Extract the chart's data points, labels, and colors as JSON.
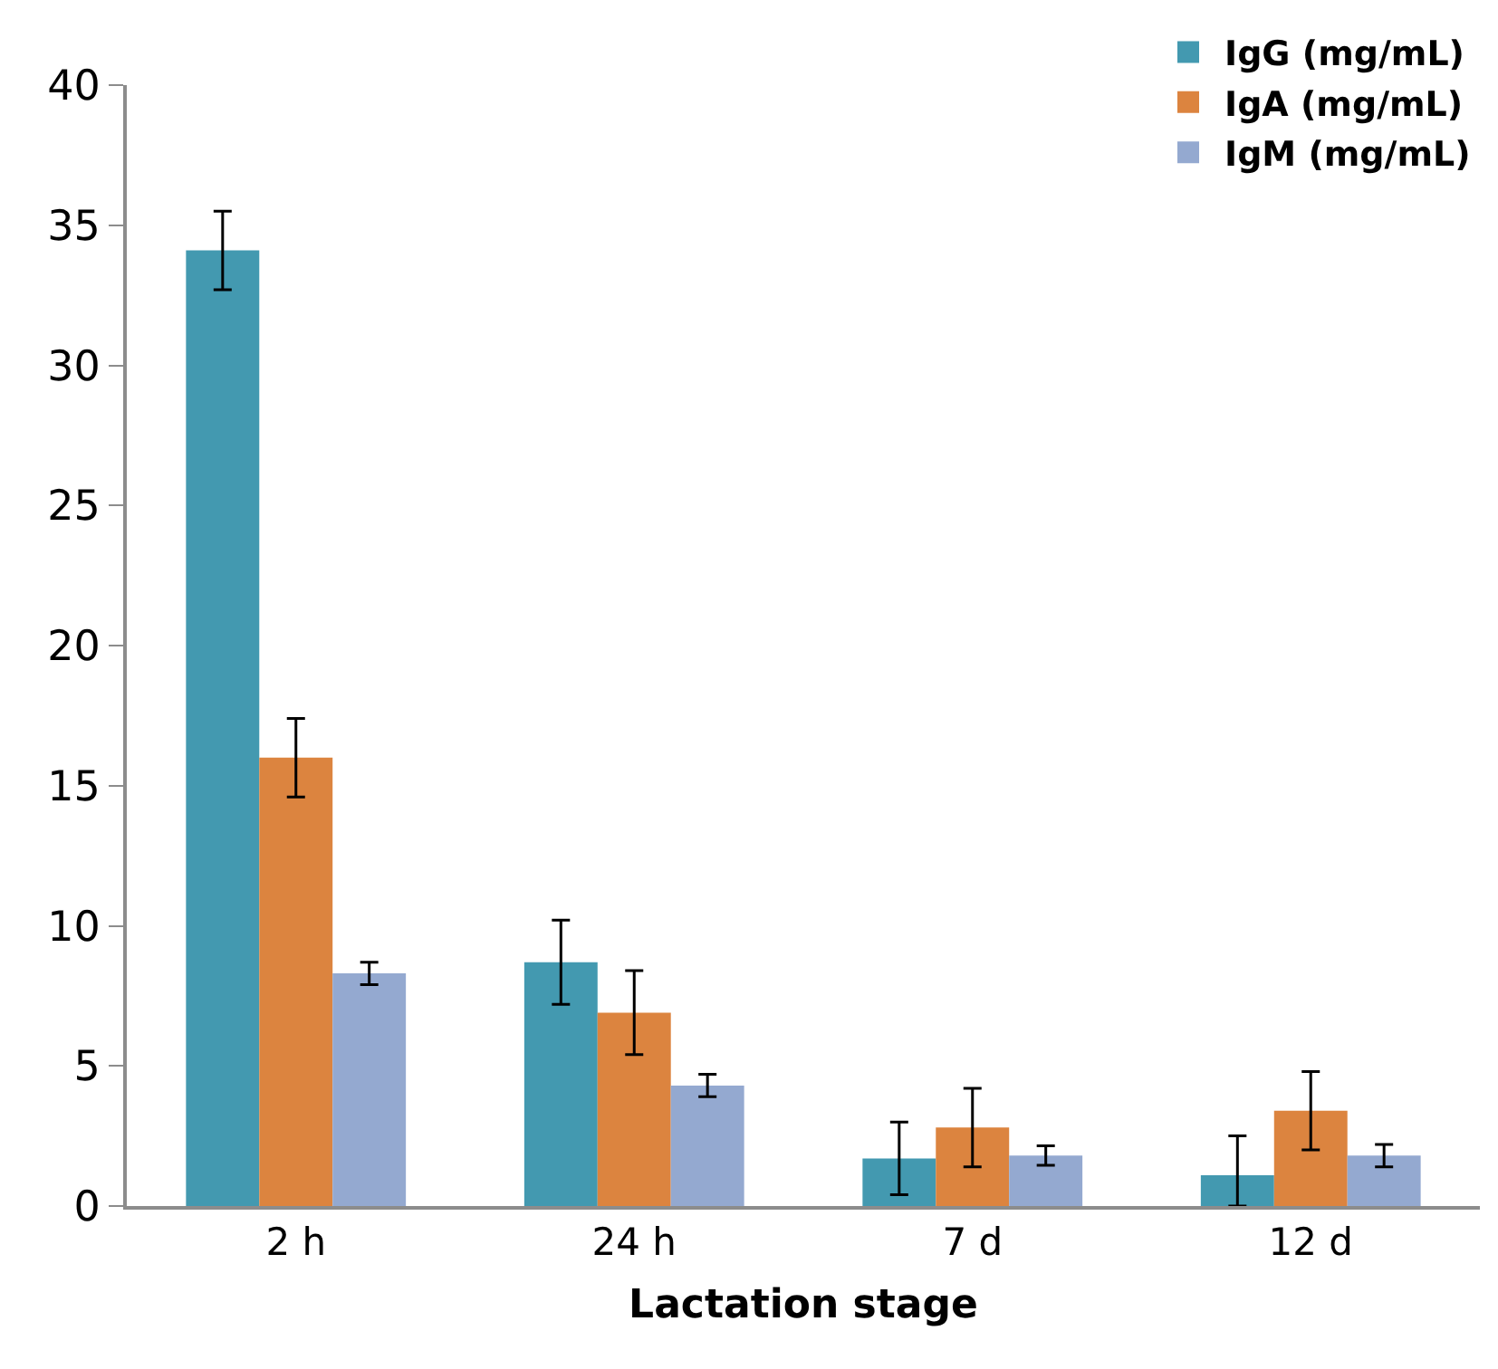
{
  "chart_data": {
    "type": "bar",
    "xlabel": "Lactation stage",
    "categories": [
      "2 h",
      "24 h",
      "7 d",
      "12 d"
    ],
    "series": [
      {
        "name": "IgG (mg/mL)",
        "color": "#4399b0",
        "values": [
          34.1,
          8.7,
          1.7,
          1.1
        ],
        "errors": [
          1.4,
          1.5,
          1.3,
          [
            0,
            2.5
          ]
        ]
      },
      {
        "name": "IgA (mg/mL)",
        "color": "#dc843f",
        "values": [
          16.0,
          6.9,
          2.8,
          3.4
        ],
        "errors": [
          1.4,
          1.5,
          1.4,
          1.4
        ]
      },
      {
        "name": "IgM (mg/mL)",
        "color": "#94a9d0",
        "values": [
          8.3,
          4.3,
          1.8,
          1.8
        ],
        "errors": [
          0.4,
          0.4,
          0.35,
          0.4
        ]
      }
    ],
    "ylim": [
      0,
      40
    ],
    "yticks": [
      0,
      5,
      10,
      15,
      20,
      25,
      30,
      35,
      40
    ],
    "grid": false,
    "legend": "top right"
  }
}
